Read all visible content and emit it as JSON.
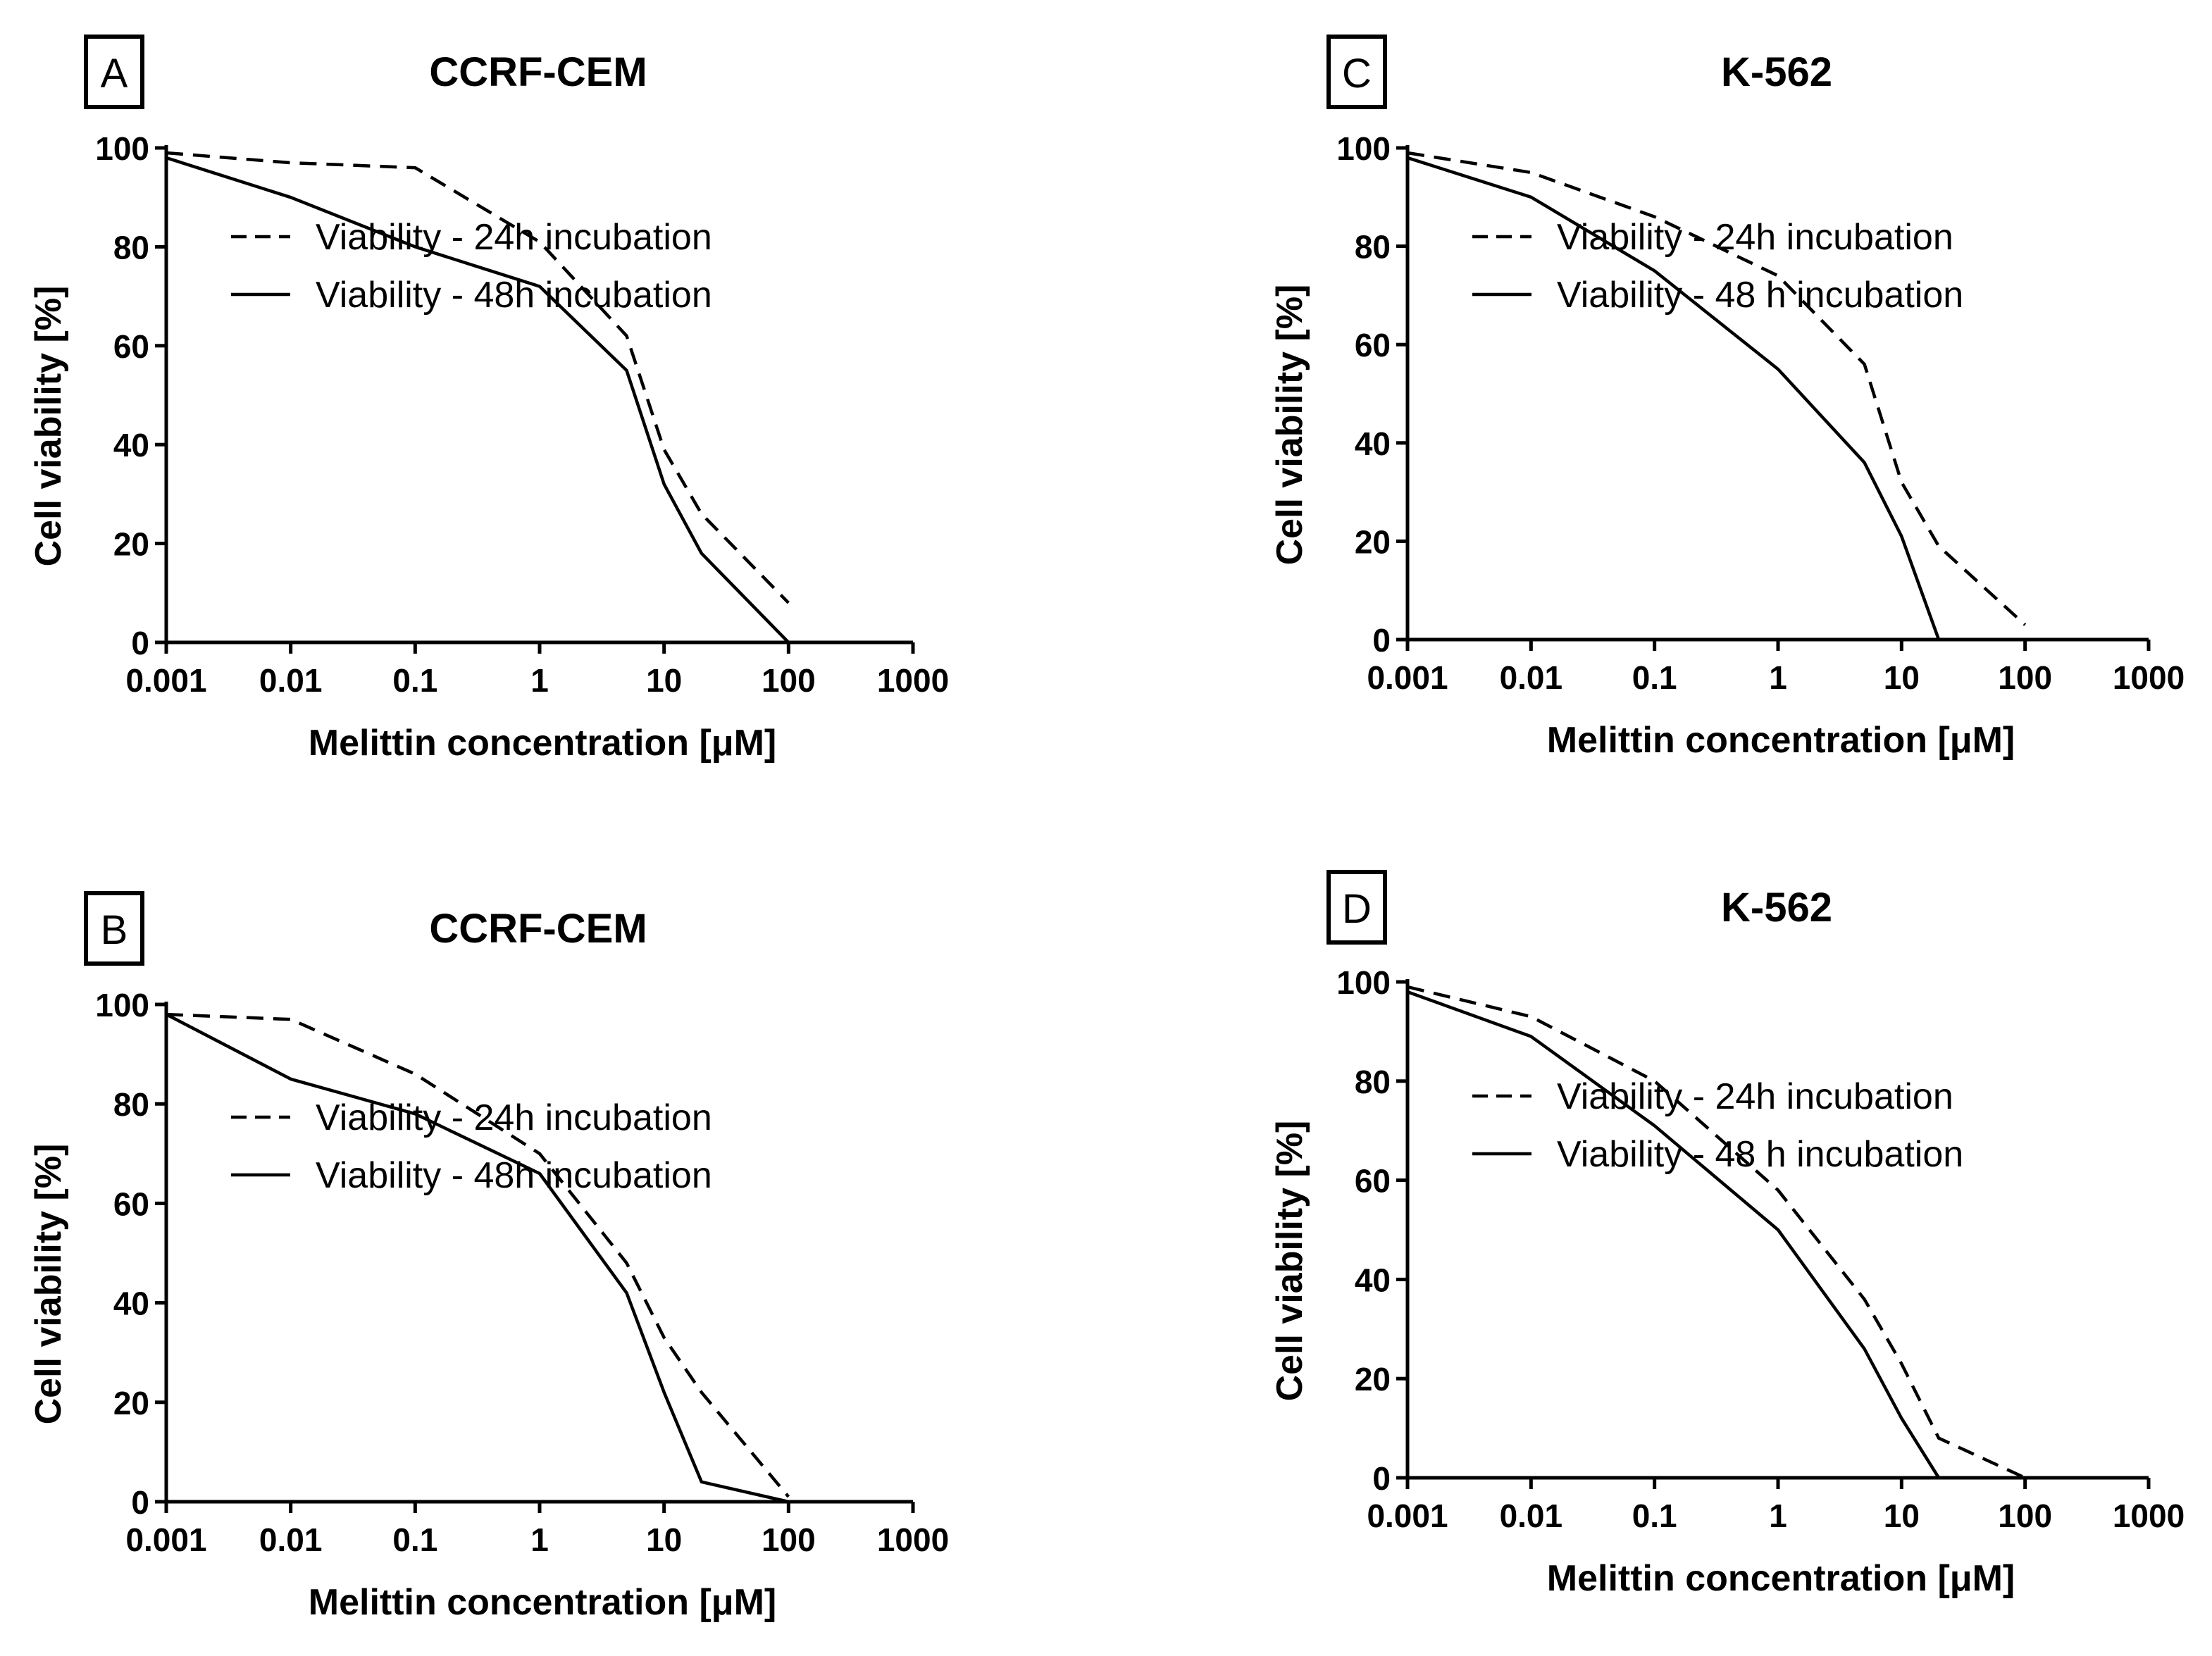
{
  "chart_data": [
    {
      "type": "line",
      "panel_label": "A",
      "title": "CCRF-CEM",
      "xlabel": "Melittin concentration [μM]",
      "ylabel": "Cell viability [%]",
      "xscale": "log",
      "xlim": [
        0.001,
        1000
      ],
      "ylim": [
        0,
        100
      ],
      "xticks": [
        "0.001",
        "0.01",
        "0.1",
        "1",
        "10",
        "100",
        "1000"
      ],
      "yticks": [
        "0",
        "20",
        "40",
        "60",
        "80",
        "100"
      ],
      "grid": false,
      "legend_position": "top-center",
      "series": [
        {
          "name": "Viability - 24h incubation",
          "style": "dashed",
          "color": "#000000",
          "x": [
            0.001,
            0.01,
            0.1,
            1,
            5,
            10,
            20,
            100
          ],
          "y": [
            99,
            97,
            96,
            81,
            62,
            39,
            26,
            8
          ]
        },
        {
          "name": "Viability - 48h incubation",
          "style": "solid",
          "color": "#000000",
          "x": [
            0.001,
            0.01,
            0.1,
            1,
            5,
            10,
            20,
            100
          ],
          "y": [
            98,
            90,
            80,
            72,
            55,
            32,
            18,
            0
          ]
        }
      ]
    },
    {
      "type": "line",
      "panel_label": "B",
      "title": "CCRF-CEM",
      "xlabel": "Melittin concentration [μM]",
      "ylabel": "Cell viability [%]",
      "xscale": "log",
      "xlim": [
        0.001,
        1000
      ],
      "ylim": [
        0,
        100
      ],
      "xticks": [
        "0.001",
        "0.01",
        "0.1",
        "1",
        "10",
        "100",
        "1000"
      ],
      "yticks": [
        "0",
        "20",
        "40",
        "60",
        "80",
        "100"
      ],
      "grid": false,
      "legend_position": "top-center",
      "series": [
        {
          "name": "Viability - 24h incubation",
          "style": "dashed",
          "color": "#000000",
          "x": [
            0.001,
            0.01,
            0.1,
            1,
            5,
            10,
            20,
            100
          ],
          "y": [
            98,
            97,
            86,
            70,
            48,
            33,
            22,
            1
          ]
        },
        {
          "name": "Viability - 48h incubation",
          "style": "solid",
          "color": "#000000",
          "x": [
            0.001,
            0.01,
            0.1,
            1,
            5,
            10,
            20,
            100
          ],
          "y": [
            98,
            85,
            78,
            66,
            42,
            22,
            4,
            0
          ]
        }
      ]
    },
    {
      "type": "line",
      "panel_label": "C",
      "title": "K-562",
      "xlabel": "Melittin concentration [μM]",
      "ylabel": "Cell viability [%]",
      "xscale": "log",
      "xlim": [
        0.001,
        1000
      ],
      "ylim": [
        0,
        100
      ],
      "xticks": [
        "0.001",
        "0.01",
        "0.1",
        "1",
        "10",
        "100",
        "1000"
      ],
      "yticks": [
        "0",
        "20",
        "40",
        "60",
        "80",
        "100"
      ],
      "grid": false,
      "legend_position": "top-center",
      "series": [
        {
          "name": "Viability - 24h incubation",
          "style": "dashed",
          "color": "#000000",
          "x": [
            0.001,
            0.01,
            0.1,
            1,
            5,
            10,
            20,
            100
          ],
          "y": [
            99,
            95,
            86,
            74,
            56,
            32,
            19,
            3
          ]
        },
        {
          "name": "Viability - 48 h incubation",
          "style": "solid",
          "color": "#000000",
          "x": [
            0.001,
            0.01,
            0.1,
            1,
            5,
            10,
            20
          ],
          "y": [
            98,
            90,
            75,
            55,
            36,
            21,
            0
          ]
        }
      ]
    },
    {
      "type": "line",
      "panel_label": "D",
      "title": "K-562",
      "xlabel": "Melittin concentration [μM]",
      "ylabel": "Cell viability [%]",
      "xscale": "log",
      "xlim": [
        0.001,
        1000
      ],
      "ylim": [
        0,
        100
      ],
      "xticks": [
        "0.001",
        "0.01",
        "0.1",
        "1",
        "10",
        "100",
        "1000"
      ],
      "yticks": [
        "0",
        "20",
        "40",
        "60",
        "80",
        "100"
      ],
      "grid": false,
      "legend_position": "top-center",
      "series": [
        {
          "name": "Viability - 24h incubation",
          "style": "dashed",
          "color": "#000000",
          "x": [
            0.001,
            0.01,
            0.1,
            1,
            5,
            10,
            20,
            100
          ],
          "y": [
            99,
            93,
            80,
            58,
            36,
            23,
            8,
            0
          ]
        },
        {
          "name": "Viability - 48 h incubation",
          "style": "solid",
          "color": "#000000",
          "x": [
            0.001,
            0.01,
            0.1,
            1,
            5,
            10,
            20
          ],
          "y": [
            98,
            89,
            71,
            50,
            26,
            12,
            0
          ]
        }
      ]
    }
  ]
}
